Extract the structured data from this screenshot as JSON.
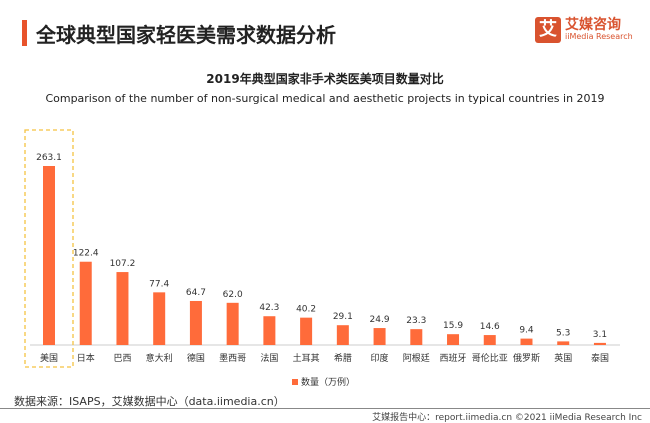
{
  "header": {
    "title": "全球典型国家轻医美需求数据分析",
    "logo_cn": "艾媒咨询",
    "logo_en": "iiMedia Research",
    "logo_mark": "艾"
  },
  "chart_data": {
    "type": "bar",
    "title": "2019年典型国家非手术类医美项目数量对比",
    "subtitle": "Comparison of the number of non-surgical medical and aesthetic projects in typical countries in 2019",
    "categories": [
      "美国",
      "日本",
      "巴西",
      "意大利",
      "德国",
      "墨西哥",
      "法国",
      "土耳其",
      "希腊",
      "印度",
      "阿根廷",
      "西班牙",
      "哥伦比亚",
      "俄罗斯",
      "英国",
      "泰国"
    ],
    "series": [
      {
        "name": "数量（万例）",
        "values": [
          263.1,
          122.4,
          107.2,
          77.4,
          64.7,
          62.0,
          42.3,
          40.2,
          29.1,
          24.9,
          23.3,
          15.9,
          14.6,
          9.4,
          5.3,
          3.1
        ]
      }
    ],
    "color": "#ff6b3a",
    "highlight": "美国",
    "highlight_color": "#f5c242",
    "legend_position": "bottom",
    "grid": false
  },
  "footer": {
    "source": "数据来源：ISAPS，艾媒数据中心（data.iimedia.cn）",
    "credit": "艾媒报告中心：report.iimedia.cn  ©2021  iiMedia Research Inc"
  }
}
